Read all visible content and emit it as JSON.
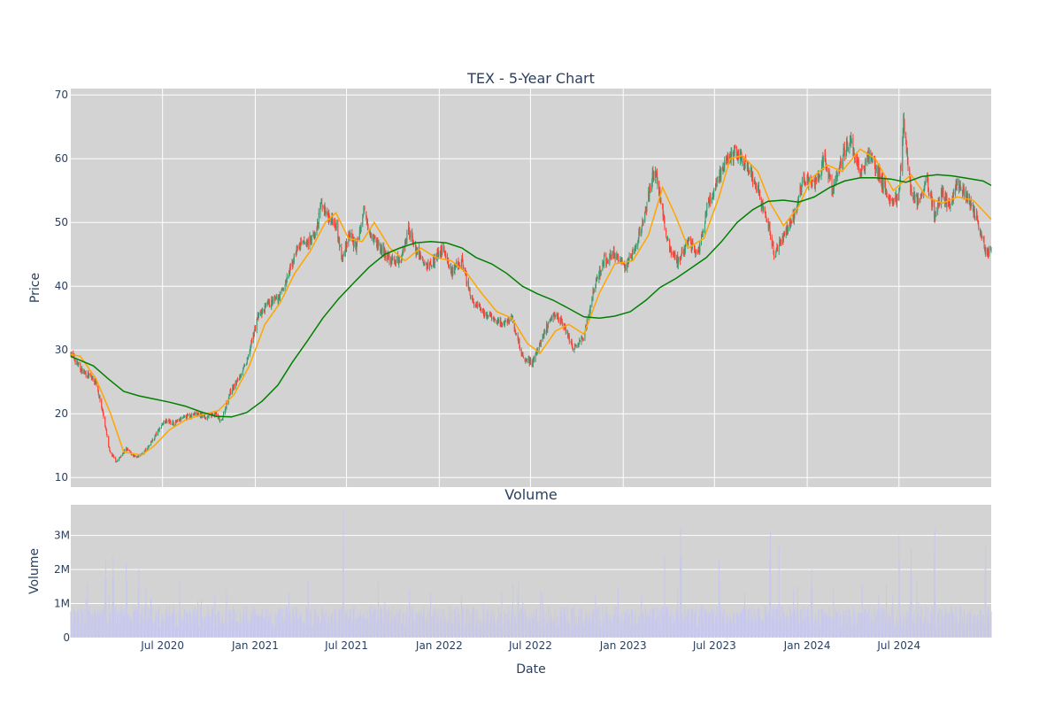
{
  "chart_data": [
    {
      "type": "candlestick",
      "title": "TEX - 5-Year Chart",
      "xlabel": "",
      "ylabel": "Price",
      "ylim": [
        8.5,
        71
      ],
      "yticks": [
        10,
        20,
        30,
        40,
        50,
        60,
        70
      ],
      "grid": true,
      "legend": "none",
      "colors": {
        "background": "#d3d3d3",
        "grid": "#ffffff",
        "up": "#3d9970",
        "down": "#ff4136",
        "ma_short": "#ffa500",
        "ma_long": "#008000",
        "text": "#2a3f5f"
      },
      "price_path": [
        [
          "2020-01-01",
          29.5
        ],
        [
          "2020-01-20",
          27
        ],
        [
          "2020-02-05",
          26
        ],
        [
          "2020-02-20",
          25
        ],
        [
          "2020-03-05",
          20
        ],
        [
          "2020-03-18",
          14
        ],
        [
          "2020-04-01",
          12.5
        ],
        [
          "2020-04-20",
          14.5
        ],
        [
          "2020-05-10",
          13
        ],
        [
          "2020-05-25",
          14
        ],
        [
          "2020-06-05",
          15
        ],
        [
          "2020-06-20",
          17
        ],
        [
          "2020-07-05",
          19
        ],
        [
          "2020-07-25",
          18.5
        ],
        [
          "2020-08-15",
          19.5
        ],
        [
          "2020-09-05",
          20
        ],
        [
          "2020-09-25",
          19.5
        ],
        [
          "2020-10-15",
          20
        ],
        [
          "2020-10-25",
          18.5
        ],
        [
          "2020-11-10",
          23
        ],
        [
          "2020-11-25",
          25
        ],
        [
          "2020-12-15",
          28
        ],
        [
          "2021-01-05",
          35
        ],
        [
          "2021-01-25",
          37
        ],
        [
          "2021-02-15",
          38
        ],
        [
          "2021-03-05",
          41
        ],
        [
          "2021-03-25",
          46
        ],
        [
          "2021-04-15",
          47
        ],
        [
          "2021-05-01",
          48
        ],
        [
          "2021-05-12",
          53
        ],
        [
          "2021-05-25",
          51
        ],
        [
          "2021-06-10",
          50
        ],
        [
          "2021-06-22",
          44
        ],
        [
          "2021-07-05",
          48
        ],
        [
          "2021-07-20",
          46
        ],
        [
          "2021-08-05",
          52
        ],
        [
          "2021-08-20",
          48
        ],
        [
          "2021-09-05",
          46
        ],
        [
          "2021-09-25",
          44
        ],
        [
          "2021-10-15",
          44
        ],
        [
          "2021-11-01",
          49
        ],
        [
          "2021-11-15",
          46
        ],
        [
          "2021-12-05",
          43
        ],
        [
          "2021-12-20",
          44
        ],
        [
          "2022-01-10",
          46
        ],
        [
          "2022-01-25",
          42
        ],
        [
          "2022-02-15",
          44
        ],
        [
          "2022-03-05",
          38
        ],
        [
          "2022-03-25",
          36
        ],
        [
          "2022-04-15",
          35
        ],
        [
          "2022-05-05",
          34
        ],
        [
          "2022-05-25",
          35
        ],
        [
          "2022-06-15",
          29
        ],
        [
          "2022-07-05",
          28
        ],
        [
          "2022-07-25",
          32
        ],
        [
          "2022-08-15",
          36
        ],
        [
          "2022-09-05",
          34
        ],
        [
          "2022-09-25",
          30
        ],
        [
          "2022-10-15",
          32
        ],
        [
          "2022-11-05",
          40
        ],
        [
          "2022-11-25",
          44
        ],
        [
          "2022-12-15",
          45
        ],
        [
          "2023-01-05",
          43
        ],
        [
          "2023-01-25",
          46
        ],
        [
          "2023-02-15",
          52
        ],
        [
          "2023-03-05",
          59
        ],
        [
          "2023-03-15",
          54
        ],
        [
          "2023-04-01",
          46
        ],
        [
          "2023-04-20",
          44
        ],
        [
          "2023-05-10",
          47
        ],
        [
          "2023-05-30",
          45
        ],
        [
          "2023-06-15",
          52
        ],
        [
          "2023-07-05",
          56
        ],
        [
          "2023-07-25",
          60
        ],
        [
          "2023-08-15",
          61
        ],
        [
          "2023-09-05",
          59
        ],
        [
          "2023-09-25",
          55
        ],
        [
          "2023-10-15",
          50
        ],
        [
          "2023-10-28",
          45
        ],
        [
          "2023-11-15",
          48
        ],
        [
          "2023-12-05",
          51
        ],
        [
          "2023-12-25",
          57
        ],
        [
          "2024-01-15",
          56
        ],
        [
          "2024-02-05",
          60
        ],
        [
          "2024-02-20",
          55
        ],
        [
          "2024-03-10",
          60
        ],
        [
          "2024-03-25",
          63
        ],
        [
          "2024-04-15",
          58
        ],
        [
          "2024-05-05",
          61
        ],
        [
          "2024-05-25",
          57
        ],
        [
          "2024-06-15",
          53
        ],
        [
          "2024-07-01",
          54
        ],
        [
          "2024-07-10",
          66
        ],
        [
          "2024-07-25",
          55
        ],
        [
          "2024-08-10",
          53
        ],
        [
          "2024-08-25",
          57
        ],
        [
          "2024-09-10",
          51
        ],
        [
          "2024-09-25",
          55
        ],
        [
          "2024-10-10",
          52
        ],
        [
          "2024-10-25",
          56
        ],
        [
          "2024-11-15",
          54
        ],
        [
          "2024-12-05",
          50
        ],
        [
          "2024-12-20",
          45.5
        ],
        [
          "2024-12-31",
          45.5
        ]
      ],
      "ma_short_path": [
        [
          "2020-01-01",
          29.3
        ],
        [
          "2020-01-20",
          29
        ],
        [
          "2020-02-20",
          25.5
        ],
        [
          "2020-03-20",
          20
        ],
        [
          "2020-04-15",
          14
        ],
        [
          "2020-05-20",
          13.5
        ],
        [
          "2020-06-15",
          15
        ],
        [
          "2020-07-15",
          17.5
        ],
        [
          "2020-08-15",
          19
        ],
        [
          "2020-09-15",
          19.8
        ],
        [
          "2020-10-20",
          20.5
        ],
        [
          "2020-11-20",
          23
        ],
        [
          "2020-12-20",
          27.5
        ],
        [
          "2021-01-20",
          34
        ],
        [
          "2021-02-20",
          37.5
        ],
        [
          "2021-03-20",
          42
        ],
        [
          "2021-04-20",
          45.5
        ],
        [
          "2021-05-20",
          50
        ],
        [
          "2021-06-10",
          51.5
        ],
        [
          "2021-07-05",
          47.5
        ],
        [
          "2021-08-01",
          47
        ],
        [
          "2021-08-25",
          50
        ],
        [
          "2021-09-25",
          46
        ],
        [
          "2021-10-25",
          44
        ],
        [
          "2021-11-25",
          46
        ],
        [
          "2021-12-25",
          44.5
        ],
        [
          "2022-01-25",
          44
        ],
        [
          "2022-02-25",
          42
        ],
        [
          "2022-03-25",
          39
        ],
        [
          "2022-04-25",
          36
        ],
        [
          "2022-05-25",
          35
        ],
        [
          "2022-06-25",
          31
        ],
        [
          "2022-07-20",
          29.5
        ],
        [
          "2022-08-20",
          33
        ],
        [
          "2022-09-15",
          34
        ],
        [
          "2022-10-15",
          32.5
        ],
        [
          "2022-11-15",
          39
        ],
        [
          "2022-12-15",
          43.5
        ],
        [
          "2023-01-20",
          44
        ],
        [
          "2023-02-20",
          48
        ],
        [
          "2023-03-20",
          55.5
        ],
        [
          "2023-04-15",
          51
        ],
        [
          "2023-05-10",
          46
        ],
        [
          "2023-06-10",
          47.5
        ],
        [
          "2023-07-10",
          54
        ],
        [
          "2023-08-01",
          60
        ],
        [
          "2023-08-25",
          60.5
        ],
        [
          "2023-09-25",
          58
        ],
        [
          "2023-10-20",
          53
        ],
        [
          "2023-11-15",
          49.5
        ],
        [
          "2023-12-15",
          52.5
        ],
        [
          "2024-01-10",
          57
        ],
        [
          "2024-02-10",
          59
        ],
        [
          "2024-03-10",
          58
        ],
        [
          "2024-04-15",
          61.5
        ],
        [
          "2024-05-15",
          60
        ],
        [
          "2024-06-20",
          55
        ],
        [
          "2024-07-25",
          57.5
        ],
        [
          "2024-08-25",
          54
        ],
        [
          "2024-09-25",
          53
        ],
        [
          "2024-10-25",
          54
        ],
        [
          "2024-11-25",
          53.5
        ],
        [
          "2024-12-31",
          50.5
        ]
      ],
      "ma_long_path": [
        [
          "2020-01-01",
          29
        ],
        [
          "2020-02-15",
          27.5
        ],
        [
          "2020-03-15",
          25.5
        ],
        [
          "2020-04-15",
          23.5
        ],
        [
          "2020-05-15",
          22.8
        ],
        [
          "2020-06-15",
          22.3
        ],
        [
          "2020-07-15",
          21.8
        ],
        [
          "2020-08-15",
          21.2
        ],
        [
          "2020-09-15",
          20.3
        ],
        [
          "2020-10-15",
          19.6
        ],
        [
          "2020-11-15",
          19.5
        ],
        [
          "2020-12-15",
          20.2
        ],
        [
          "2021-01-15",
          22
        ],
        [
          "2021-02-15",
          24.5
        ],
        [
          "2021-03-15",
          28
        ],
        [
          "2021-04-15",
          31.5
        ],
        [
          "2021-05-15",
          35
        ],
        [
          "2021-06-15",
          38
        ],
        [
          "2021-07-15",
          40.5
        ],
        [
          "2021-08-15",
          43
        ],
        [
          "2021-09-15",
          45
        ],
        [
          "2021-10-15",
          46
        ],
        [
          "2021-11-15",
          46.8
        ],
        [
          "2021-12-15",
          47
        ],
        [
          "2022-01-15",
          46.8
        ],
        [
          "2022-02-15",
          46
        ],
        [
          "2022-03-15",
          44.5
        ],
        [
          "2022-04-15",
          43.5
        ],
        [
          "2022-05-15",
          42
        ],
        [
          "2022-06-15",
          40
        ],
        [
          "2022-07-15",
          38.8
        ],
        [
          "2022-08-15",
          37.8
        ],
        [
          "2022-09-15",
          36.5
        ],
        [
          "2022-10-15",
          35.2
        ],
        [
          "2022-11-15",
          35
        ],
        [
          "2022-12-15",
          35.3
        ],
        [
          "2023-01-15",
          36
        ],
        [
          "2023-02-15",
          37.8
        ],
        [
          "2023-03-15",
          39.8
        ],
        [
          "2023-04-15",
          41.2
        ],
        [
          "2023-05-15",
          42.8
        ],
        [
          "2023-06-15",
          44.5
        ],
        [
          "2023-07-15",
          47
        ],
        [
          "2023-08-15",
          50
        ],
        [
          "2023-09-15",
          52
        ],
        [
          "2023-10-15",
          53.3
        ],
        [
          "2023-11-15",
          53.5
        ],
        [
          "2023-12-15",
          53.2
        ],
        [
          "2024-01-15",
          54
        ],
        [
          "2024-02-15",
          55.5
        ],
        [
          "2024-03-15",
          56.5
        ],
        [
          "2024-04-15",
          57
        ],
        [
          "2024-05-15",
          57
        ],
        [
          "2024-06-15",
          56.8
        ],
        [
          "2024-07-15",
          56.3
        ],
        [
          "2024-08-15",
          57.2
        ],
        [
          "2024-09-15",
          57.5
        ],
        [
          "2024-10-15",
          57.3
        ],
        [
          "2024-11-15",
          56.9
        ],
        [
          "2024-12-15",
          56.5
        ],
        [
          "2024-12-31",
          55.8
        ]
      ],
      "volatility_note": "daily candles follow price_path"
    },
    {
      "type": "bar",
      "title": "Volume",
      "xlabel": "Date",
      "ylabel": "Volume",
      "ylim": [
        0,
        3900000
      ],
      "yticks": [
        0,
        1000000,
        2000000,
        3000000
      ],
      "ytick_labels": [
        "0",
        "1M",
        "2M",
        "3M"
      ],
      "x_range": [
        "2020-01-01",
        "2024-12-31"
      ],
      "xticks": [
        "2020-07-01",
        "2021-01-01",
        "2021-07-01",
        "2022-01-01",
        "2022-07-01",
        "2023-01-01",
        "2023-07-01",
        "2024-01-01",
        "2024-07-01"
      ],
      "xtick_labels": [
        "Jul 2020",
        "Jan 2021",
        "Jul 2021",
        "Jan 2022",
        "Jul 2022",
        "Jan 2023",
        "Jul 2023",
        "Jan 2024",
        "Jul 2024"
      ],
      "grid": true,
      "legend": "none",
      "colors": {
        "bar": "#c8c8ec",
        "background": "#d3d3d3",
        "grid": "#ffffff",
        "text": "#2a3f5f"
      },
      "volume_peaks": [
        [
          "2020-03-10",
          2300000
        ],
        [
          "2020-03-25",
          2400000
        ],
        [
          "2020-04-20",
          2200000
        ],
        [
          "2020-05-15",
          2000000
        ],
        [
          "2021-06-25",
          3700000
        ],
        [
          "2022-06-05",
          1700000
        ],
        [
          "2023-02-05",
          1700000
        ],
        [
          "2023-03-25",
          3200000
        ],
        [
          "2023-04-25",
          3200000
        ],
        [
          "2023-07-10",
          2300000
        ],
        [
          "2023-10-20",
          3100000
        ],
        [
          "2023-11-05",
          2000000
        ],
        [
          "2024-01-10",
          2000000
        ],
        [
          "2024-04-20",
          2100000
        ],
        [
          "2024-07-01",
          3000000
        ],
        [
          "2024-07-25",
          2600000
        ],
        [
          "2024-09-10",
          1800000
        ],
        [
          "2024-12-20",
          2700000
        ]
      ],
      "volume_base": 700000
    }
  ]
}
